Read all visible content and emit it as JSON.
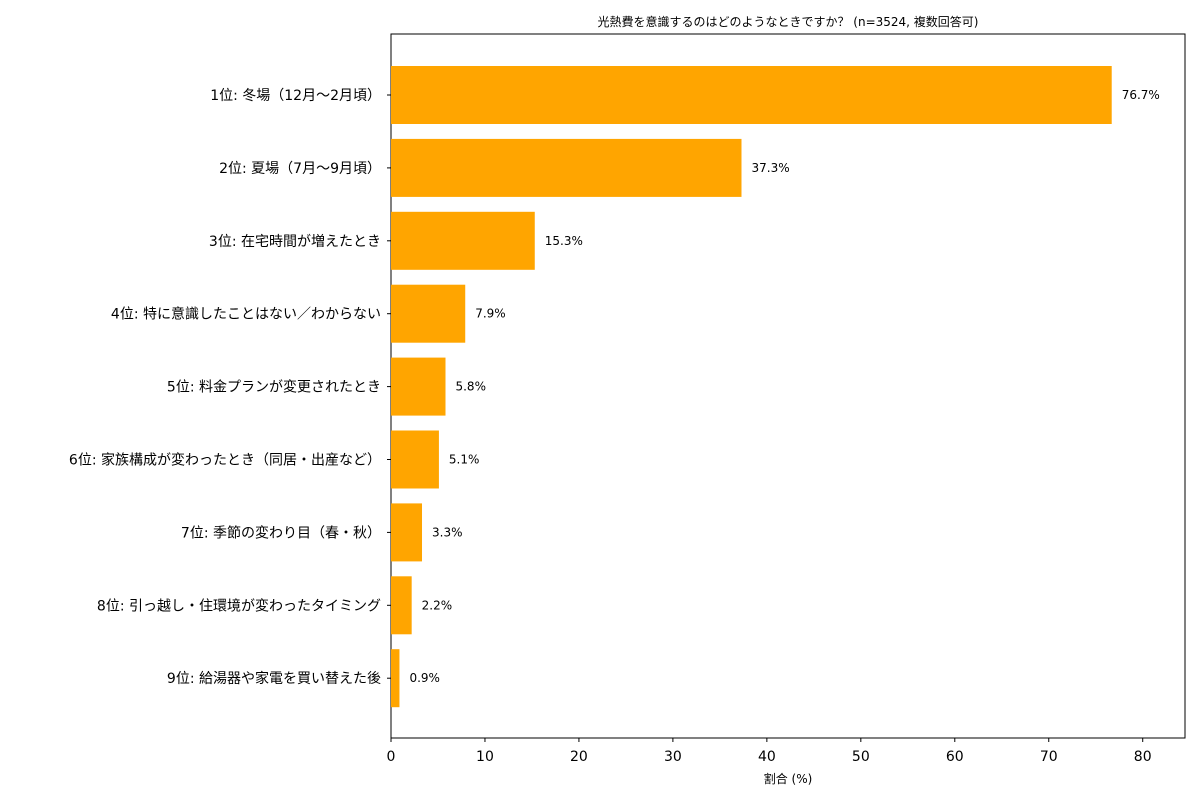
{
  "chart_data": {
    "type": "bar",
    "orientation": "horizontal",
    "title": "光熱費を意識するのはどのようなときですか？ (n=3524, 複数回答可)",
    "xlabel": "割合 (%)",
    "ylabel": "",
    "xlim": [
      0,
      84.5
    ],
    "xticks": [
      0,
      10,
      20,
      30,
      40,
      50,
      60,
      70,
      80
    ],
    "grid": false,
    "bar_color": "#FFA500",
    "categories": [
      "1位: 冬場（12月〜2月頃）",
      "2位: 夏場（7月〜9月頃）",
      "3位: 在宅時間が増えたとき",
      "4位: 特に意識したことはない／わからない",
      "5位: 料金プランが変更されたとき",
      "6位: 家族構成が変わったとき（同居・出産など）",
      "7位: 季節の変わり目（春・秋）",
      "8位: 引っ越し・住環境が変わったタイミング",
      "9位: 給湯器や家電を買い替えた後"
    ],
    "values": [
      76.7,
      37.3,
      15.3,
      7.9,
      5.8,
      5.1,
      3.3,
      2.2,
      0.9
    ],
    "value_labels": [
      "76.7%",
      "37.3%",
      "15.3%",
      "7.9%",
      "5.8%",
      "5.1%",
      "3.3%",
      "2.2%",
      "0.9%"
    ]
  }
}
